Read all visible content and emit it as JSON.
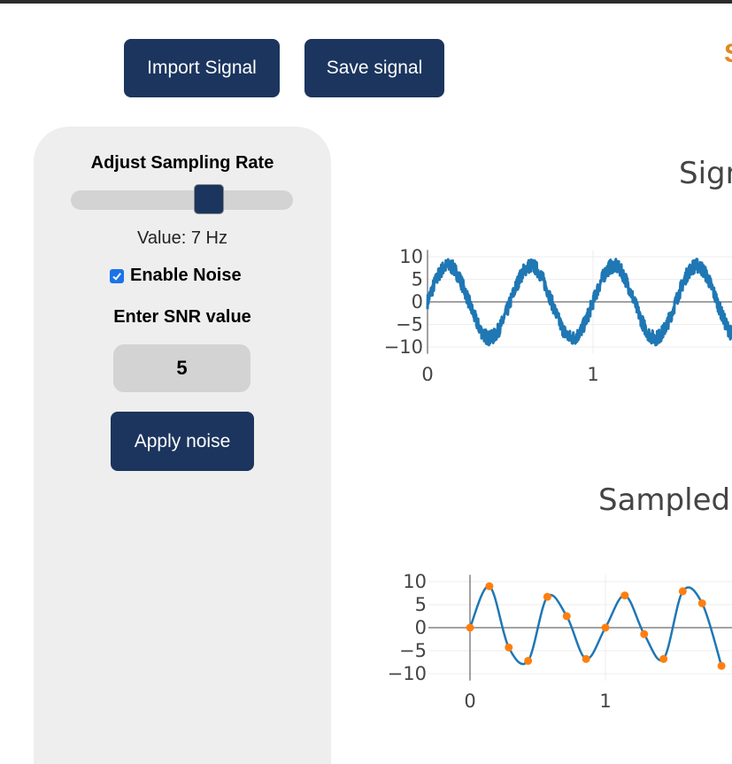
{
  "toolbar": {
    "import_label": "Import Signal",
    "save_label": "Save signal",
    "cut_fragment": "S"
  },
  "sidebar": {
    "sampling_title": "Adjust Sampling Rate",
    "sampling_value_text": "Value: 7 Hz",
    "slider_fraction": 0.64,
    "noise_label": "Enable Noise",
    "noise_enabled": true,
    "snr_title": "Enter SNR value",
    "snr_value": "5",
    "apply_label": "Apply noise"
  },
  "colors": {
    "button_bg": "#1b355e",
    "signal_line": "#1f77b4",
    "sample_marker": "#ff7f0e"
  },
  "chart_data": [
    {
      "type": "line",
      "title": "Sign",
      "x_ticks": [
        "0",
        "1"
      ],
      "y_ticks": [
        "10",
        "5",
        "0",
        "−5",
        "−10"
      ],
      "ylim": [
        -11,
        11
      ],
      "series": [
        {
          "frequency_hz": 2,
          "amplitude": 8,
          "noise": true
        }
      ]
    },
    {
      "type": "scatter",
      "title": "Sampled",
      "x_ticks": [
        "0",
        "1"
      ],
      "y_ticks": [
        "10",
        "5",
        "0",
        "−5",
        "−10"
      ],
      "ylim": [
        -11,
        11
      ],
      "line": {
        "frequency_hz": 2,
        "amplitude": 8
      },
      "samples": {
        "x": [
          0,
          0.143,
          0.286,
          0.429,
          0.571,
          0.714,
          0.857,
          1.0,
          1.143,
          1.286,
          1.429,
          1.571,
          1.714,
          1.857
        ],
        "y": [
          0,
          9.0,
          -4.3,
          -7.2,
          6.7,
          2.5,
          -6.8,
          0,
          7.0,
          -1.4,
          -6.8,
          7.9,
          5.3,
          -8.3
        ]
      }
    }
  ]
}
